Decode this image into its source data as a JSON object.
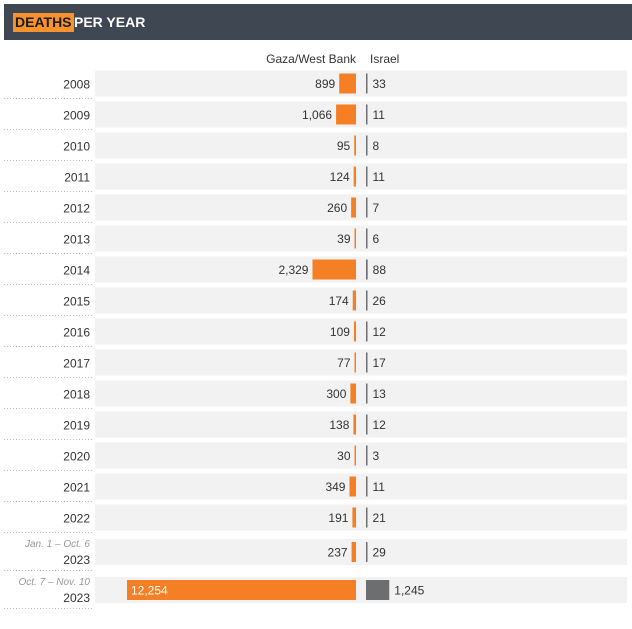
{
  "header": {
    "title_highlight": "DEATHS",
    "title_rest": "PER YEAR"
  },
  "colors": {
    "header_bg": "#3f4752",
    "highlight": "#f7922f",
    "gaza_bar": "#f47f24",
    "israel_bar": "#6d6e70",
    "row_band": "#f2f2f2"
  },
  "chart_data": {
    "type": "bar",
    "series": [
      {
        "name": "Gaza/West Bank",
        "values": [
          899,
          1066,
          95,
          124,
          260,
          39,
          2329,
          174,
          109,
          77,
          300,
          138,
          30,
          349,
          191,
          237,
          12254
        ]
      },
      {
        "name": "Israel",
        "values": [
          33,
          11,
          8,
          11,
          7,
          6,
          88,
          26,
          12,
          17,
          13,
          12,
          3,
          11,
          21,
          29,
          1245
        ]
      }
    ],
    "rows": [
      {
        "year": "2008",
        "note": "",
        "gaza_label": "899",
        "israel_label": "33"
      },
      {
        "year": "2009",
        "note": "",
        "gaza_label": "1,066",
        "israel_label": "11"
      },
      {
        "year": "2010",
        "note": "",
        "gaza_label": "95",
        "israel_label": "8"
      },
      {
        "year": "2011",
        "note": "",
        "gaza_label": "124",
        "israel_label": "11"
      },
      {
        "year": "2012",
        "note": "",
        "gaza_label": "260",
        "israel_label": "7"
      },
      {
        "year": "2013",
        "note": "",
        "gaza_label": "39",
        "israel_label": "6"
      },
      {
        "year": "2014",
        "note": "",
        "gaza_label": "2,329",
        "israel_label": "88"
      },
      {
        "year": "2015",
        "note": "",
        "gaza_label": "174",
        "israel_label": "26"
      },
      {
        "year": "2016",
        "note": "",
        "gaza_label": "109",
        "israel_label": "12"
      },
      {
        "year": "2017",
        "note": "",
        "gaza_label": "77",
        "israel_label": "17"
      },
      {
        "year": "2018",
        "note": "",
        "gaza_label": "300",
        "israel_label": "13"
      },
      {
        "year": "2019",
        "note": "",
        "gaza_label": "138",
        "israel_label": "12"
      },
      {
        "year": "2020",
        "note": "",
        "gaza_label": "30",
        "israel_label": "3"
      },
      {
        "year": "2021",
        "note": "",
        "gaza_label": "349",
        "israel_label": "11"
      },
      {
        "year": "2022",
        "note": "",
        "gaza_label": "191",
        "israel_label": "21"
      },
      {
        "year": "2023",
        "note": "Jan. 1 – Oct. 6",
        "gaza_label": "237",
        "israel_label": "29"
      },
      {
        "year": "2023",
        "note": "Oct. 7 – Nov. 10",
        "gaza_label": "12,254",
        "israel_label": "1,245"
      }
    ]
  }
}
